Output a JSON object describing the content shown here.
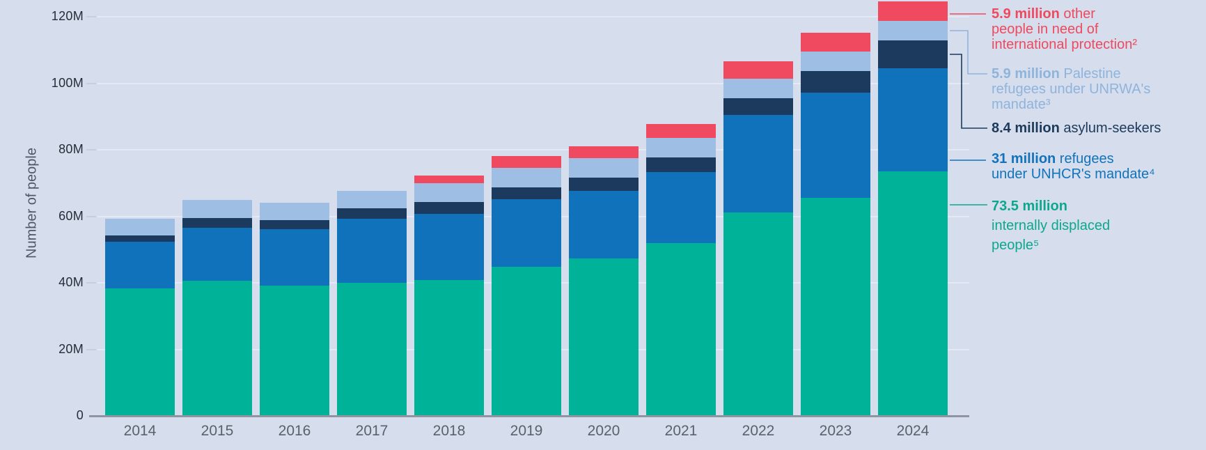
{
  "chart_data": {
    "type": "bar",
    "stacked": true,
    "ylabel": "Number of people",
    "unit": "millions of people",
    "categories": [
      "2014",
      "2015",
      "2016",
      "2017",
      "2018",
      "2019",
      "2020",
      "2021",
      "2022",
      "2023",
      "2024"
    ],
    "series": [
      {
        "name": "Internally displaced people",
        "color": "#00b398",
        "values": [
          38.3,
          40.6,
          39.2,
          40.0,
          40.8,
          44.8,
          47.3,
          51.9,
          61.2,
          65.5,
          73.5
        ]
      },
      {
        "name": "Refugees under UNHCR's mandate",
        "color": "#0f72ba",
        "values": [
          14.0,
          15.9,
          16.9,
          19.3,
          19.9,
          20.3,
          20.3,
          21.4,
          29.3,
          31.7,
          31.0
        ]
      },
      {
        "name": "Asylum-seekers",
        "color": "#1b3a5d",
        "values": [
          1.9,
          3.0,
          2.7,
          3.1,
          3.5,
          3.6,
          4.0,
          4.4,
          4.9,
          6.5,
          8.4
        ]
      },
      {
        "name": "Palestine refugees under UNRWA's mandate",
        "color": "#9ebfe3",
        "values": [
          5.1,
          5.4,
          5.2,
          5.2,
          5.7,
          5.9,
          5.9,
          5.9,
          5.9,
          5.8,
          5.9
        ]
      },
      {
        "name": "Other people in need of international protection",
        "color": "#ef4a60",
        "values": [
          0,
          0,
          0,
          0,
          2.4,
          3.6,
          3.5,
          4.1,
          5.3,
          5.6,
          5.9
        ]
      }
    ],
    "y_ticks": [
      {
        "value": 0,
        "label": "0"
      },
      {
        "value": 20,
        "label": "20M"
      },
      {
        "value": 40,
        "label": "40M"
      },
      {
        "value": 60,
        "label": "60M"
      },
      {
        "value": 80,
        "label": "80M"
      },
      {
        "value": 100,
        "label": "100M"
      },
      {
        "value": 120,
        "label": "120M"
      }
    ],
    "ylim": [
      0,
      125
    ],
    "grid": "horizontal",
    "legend_position": "right"
  },
  "legend": {
    "items": [
      {
        "id": "other",
        "color": "#ee4a5f",
        "bold": "5.9 million",
        "rest": " other",
        "lines": [
          "people in need of",
          "international protection²"
        ]
      },
      {
        "id": "unrwa",
        "color": "#8fb4dc",
        "bold": "5.9 million",
        "rest": " Palestine",
        "lines": [
          "refugees under UNRWA's",
          "mandate³"
        ]
      },
      {
        "id": "asylum",
        "color": "#1c3a5c",
        "bold": "8.4 million",
        "rest": " asylum-seekers",
        "lines": []
      },
      {
        "id": "refugees",
        "color": "#1173bb",
        "bold": "31 million",
        "rest": " refugees",
        "lines": [
          "under UNHCR's mandate⁴"
        ]
      },
      {
        "id": "idp",
        "color": "#0ca88e",
        "bold": "73.5 million",
        "rest": "",
        "lines": [
          "internally displaced",
          "people⁵"
        ]
      }
    ]
  },
  "colors": {
    "background": "#d6ddec",
    "axis_line": "#8e95a1",
    "gridline": "#e4eaf5",
    "tick_label": "#252d39",
    "year_label": "#59616c",
    "axis_title": "#4d5765"
  }
}
